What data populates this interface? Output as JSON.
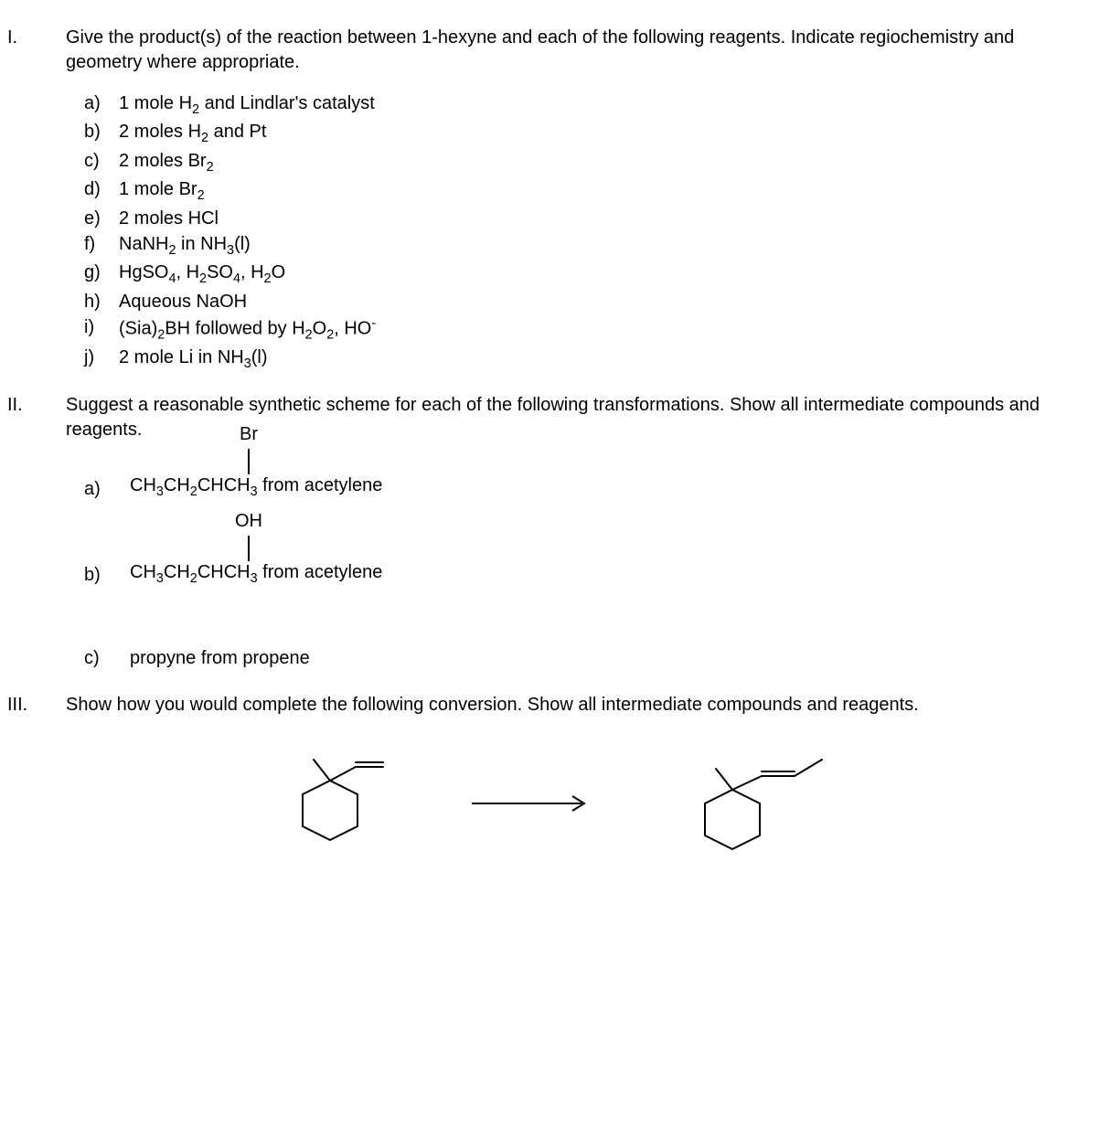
{
  "part1": {
    "roman": "I.",
    "intro": "Give the product(s) of the reaction between 1-hexyne and each of the following reagents. Indicate regiochemistry and geometry where appropriate.",
    "items": [
      {
        "letter": "a)",
        "html": "1 mole H<sub>2</sub> and Lindlar's catalyst"
      },
      {
        "letter": "b)",
        "html": "2 moles H<sub>2</sub> and Pt"
      },
      {
        "letter": "c)",
        "html": "2 moles Br<sub>2</sub>"
      },
      {
        "letter": "d)",
        "html": "1 mole Br<sub>2</sub>"
      },
      {
        "letter": "e)",
        "html": "2 moles HCl"
      },
      {
        "letter": "f)",
        "html": "NaNH<sub>2</sub> in NH<sub>3</sub>(l)"
      },
      {
        "letter": "g)",
        "html": "HgSO<sub>4</sub>, H<sub>2</sub>SO<sub>4</sub>, H<sub>2</sub>O"
      },
      {
        "letter": "h)",
        "html": "Aqueous NaOH"
      },
      {
        "letter": "i)",
        "html": "(Sia)<sub>2</sub>BH followed by H<sub>2</sub>O<sub>2</sub>, HO<sup>-</sup>"
      },
      {
        "letter": "j)",
        "html": "2 mole Li in NH<sub>3</sub>(l)"
      }
    ]
  },
  "part2": {
    "roman": "II.",
    "intro": "Suggest a reasonable synthetic scheme for each of the following transformations. Show all intermediate compounds and reagents.",
    "items": [
      {
        "letter": "a)",
        "substituent": "Br",
        "formula_html": "CH<sub>3</sub>CH<sub>2</sub>CHCH<sub>3</sub> from acetylene"
      },
      {
        "letter": "b)",
        "substituent": "OH",
        "formula_html": "CH<sub>3</sub>CH<sub>2</sub>CHCH<sub>3</sub> from acetylene"
      },
      {
        "letter": "c)",
        "text": "propyne from propene"
      }
    ]
  },
  "part3": {
    "roman": "III.",
    "intro": "Show how you would complete the following conversion. Show all intermediate compounds and reagents.",
    "hexagon_stroke": "#000",
    "stroke_width": 2
  }
}
